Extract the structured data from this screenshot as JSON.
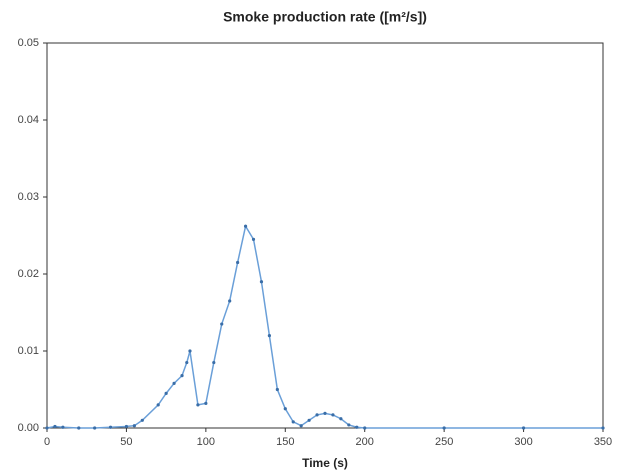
{
  "chart_data": {
    "type": "line",
    "title": "Smoke production rate ([m²/s])",
    "x_label": "Time (s)",
    "x": [
      0,
      5,
      10,
      20,
      30,
      40,
      50,
      55,
      60,
      70,
      75,
      80,
      85,
      88,
      90,
      95,
      100,
      105,
      110,
      115,
      120,
      125,
      130,
      135,
      140,
      145,
      150,
      155,
      160,
      165,
      170,
      175,
      180,
      185,
      190,
      195,
      200,
      250,
      300,
      350
    ],
    "values": [
      0,
      0.0002,
      0.0001,
      0,
      0,
      0.0001,
      0.0002,
      0.0003,
      0.001,
      0.003,
      0.0045,
      0.0058,
      0.0068,
      0.0085,
      0.01,
      0.003,
      0.0032,
      0.0085,
      0.0135,
      0.0165,
      0.0215,
      0.0262,
      0.0245,
      0.019,
      0.012,
      0.005,
      0.0025,
      0.0008,
      0.0003,
      0.001,
      0.0017,
      0.0019,
      0.0017,
      0.0012,
      0.0004,
      0.0001,
      0,
      0,
      0,
      0
    ],
    "color": "#6a9fd8",
    "xlim": [
      0,
      350
    ],
    "xticks": [
      0,
      50,
      100,
      150,
      200,
      250,
      300,
      350
    ],
    "ylim": [
      0,
      0.05
    ],
    "yticks": [
      {
        "value": 0,
        "label": "0.00"
      },
      0.01,
      0.02,
      0.03,
      0.04,
      0.05
    ]
  }
}
